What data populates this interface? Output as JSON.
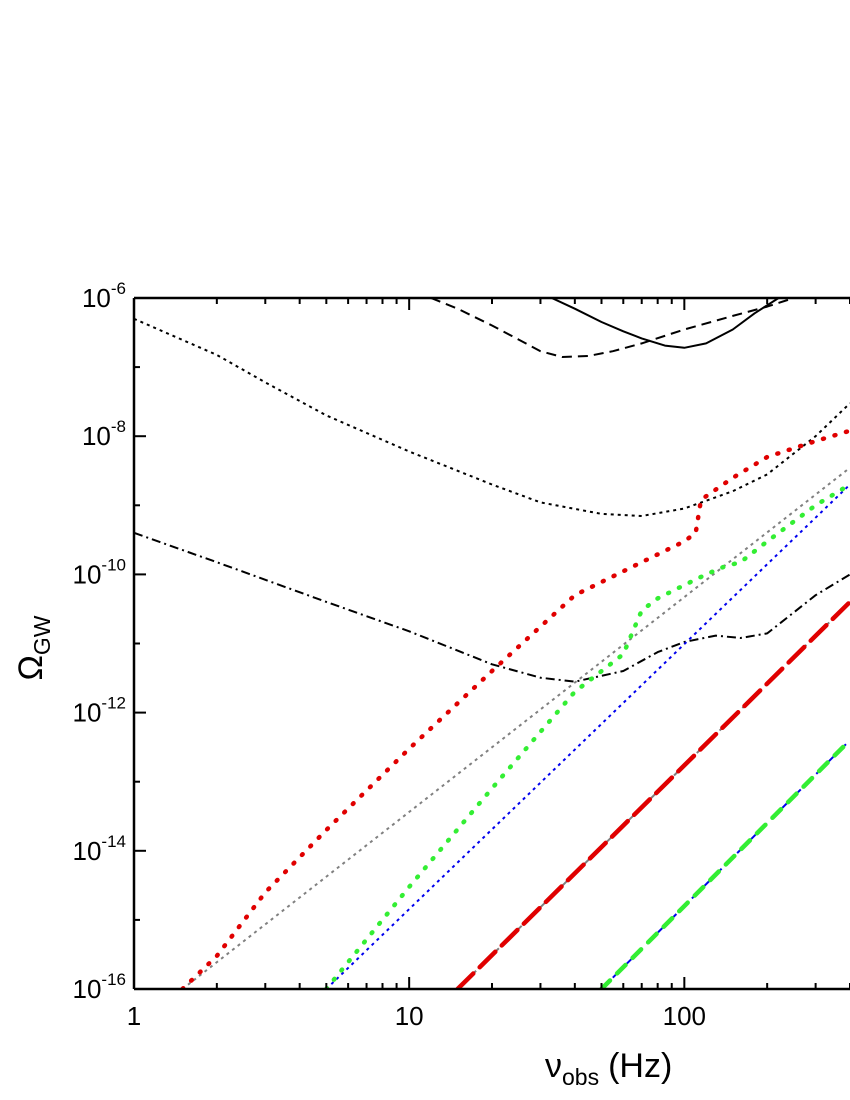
{
  "chart_data": {
    "type": "line",
    "xlabel": {
      "symbol": "ν",
      "sub": "obs",
      "unit": "(Hz)"
    },
    "ylabel": {
      "symbol": "Ω",
      "sub": "GW"
    },
    "x_scale": "log",
    "y_scale": "log",
    "xlim": [
      1,
      400
    ],
    "ylim": [
      1e-16,
      1e-06
    ],
    "x_ticks": [
      {
        "value": 1,
        "label": "1"
      },
      {
        "value": 10,
        "label": "10"
      },
      {
        "value": 100,
        "label": "100"
      }
    ],
    "y_ticks": [
      {
        "value": 1e-06,
        "base": "10",
        "exp": "-6"
      },
      {
        "value": 1e-08,
        "base": "10",
        "exp": "-8"
      },
      {
        "value": 1e-10,
        "base": "10",
        "exp": "-10"
      },
      {
        "value": 1e-12,
        "base": "10",
        "exp": "-12"
      },
      {
        "value": 1e-14,
        "base": "10",
        "exp": "-14"
      },
      {
        "value": 1e-16,
        "base": "10",
        "exp": "-16"
      }
    ],
    "series": [
      {
        "id": "sensitivity-solid",
        "color": "#000000",
        "style": "solid",
        "x": [
          33,
          40,
          50,
          60,
          70,
          85,
          100,
          120,
          150,
          180,
          220
        ],
        "y": [
          1e-06,
          7e-07,
          4.5e-07,
          3.3e-07,
          2.6e-07,
          2.05e-07,
          1.9e-07,
          2.2e-07,
          3.5e-07,
          6e-07,
          1e-06
        ]
      },
      {
        "id": "sensitivity-dashed",
        "color": "#000000",
        "style": "dashed",
        "x": [
          12,
          15,
          20,
          25,
          30,
          36,
          45,
          55,
          70,
          100,
          150,
          200,
          250
        ],
        "y": [
          1e-06,
          7e-07,
          4e-07,
          2.5e-07,
          1.7e-07,
          1.4e-07,
          1.45e-07,
          1.7e-07,
          2.2e-07,
          3.5e-07,
          5.5e-07,
          7.5e-07,
          1e-06
        ]
      },
      {
        "id": "sensitivity-dotted",
        "color": "#000000",
        "style": "dotted",
        "x": [
          1,
          2,
          3,
          5,
          10,
          20,
          30,
          50,
          70,
          100,
          150,
          200,
          300,
          400
        ],
        "y": [
          5e-07,
          1.5e-07,
          6e-08,
          2e-08,
          6e-09,
          2e-09,
          1.1e-09,
          7.5e-10,
          7e-10,
          9e-10,
          1.6e-09,
          2.8e-09,
          1e-08,
          3e-08
        ]
      },
      {
        "id": "sensitivity-dashdot",
        "color": "#000000",
        "style": "dashdot",
        "x": [
          1,
          2,
          5,
          10,
          20,
          30,
          40,
          60,
          80,
          100,
          130,
          160,
          200,
          300,
          400
        ],
        "y": [
          4e-10,
          1.5e-10,
          4e-11,
          1.5e-11,
          5e-12,
          3.2e-12,
          2.8e-12,
          4e-12,
          7.5e-12,
          1.05e-11,
          1.3e-11,
          1.2e-11,
          1.4e-11,
          5e-11,
          1e-10
        ]
      },
      {
        "id": "model-a-grey",
        "color": "#808080",
        "style": "dotted",
        "x": [
          1.5,
          400
        ],
        "y": [
          1e-16,
          3.5e-09
        ]
      },
      {
        "id": "model-a-red",
        "color": "#e00000",
        "style": "dotted-thick",
        "x": [
          1.5,
          2,
          3,
          5,
          10,
          20,
          40,
          70,
          100,
          110,
          115,
          150,
          200,
          300,
          400
        ],
        "y": [
          1e-16,
          3e-16,
          2.5e-15,
          2e-14,
          3e-13,
          4e-12,
          5e-11,
          1.5e-10,
          3e-10,
          4e-10,
          1.2e-09,
          2.5e-09,
          5e-09,
          8.5e-09,
          1.2e-08
        ]
      },
      {
        "id": "model-b-blue",
        "color": "#0000ee",
        "style": "dotted",
        "x": [
          5,
          400
        ],
        "y": [
          1e-16,
          2e-09
        ]
      },
      {
        "id": "model-b-green",
        "color": "#33ee33",
        "style": "dotted-thick",
        "x": [
          5,
          10,
          20,
          40,
          60,
          65,
          70,
          80,
          100,
          120,
          140,
          160,
          200,
          300,
          400
        ],
        "y": [
          1e-16,
          3e-15,
          8e-14,
          2e-12,
          7e-12,
          1.5e-11,
          3e-11,
          4.5e-11,
          7e-11,
          1e-10,
          1.3e-10,
          1.5e-10,
          3e-10,
          1e-09,
          2e-09
        ]
      },
      {
        "id": "model-c-grey",
        "color": "#808080",
        "style": "dashed",
        "x": [
          15,
          400
        ],
        "y": [
          1e-16,
          4e-11
        ]
      },
      {
        "id": "model-c-red",
        "color": "#e00000",
        "style": "long-dashed-thick",
        "x": [
          15,
          400
        ],
        "y": [
          1e-16,
          4e-11
        ]
      },
      {
        "id": "model-d-blue",
        "color": "#0000ee",
        "style": "dashed",
        "x": [
          50,
          400
        ],
        "y": [
          1e-16,
          4e-13
        ]
      },
      {
        "id": "model-d-green",
        "color": "#33ee33",
        "style": "dashed-thick",
        "x": [
          50,
          400
        ],
        "y": [
          1e-16,
          4e-13
        ]
      }
    ]
  }
}
